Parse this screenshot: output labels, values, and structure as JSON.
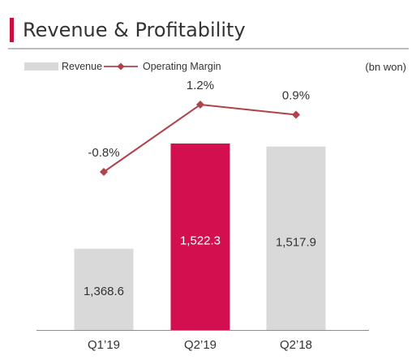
{
  "title": "Revenue & Profitability",
  "unit_label": "(bn won)",
  "colors": {
    "accent": "#c8103e",
    "bar_default": "#d9d9d9",
    "bar_highlight": "#d40f4f",
    "line": "#b0424a",
    "text": "#333333"
  },
  "chart_data": {
    "type": "bar",
    "categories": [
      "Q1’19",
      "Q2’19",
      "Q2’18"
    ],
    "series": [
      {
        "name": "Revenue",
        "type": "bar",
        "values": [
          1368.6,
          1522.3,
          1517.9
        ],
        "labels": [
          "1,368.6",
          "1,522.3",
          "1,517.9"
        ],
        "highlight_index": 1
      },
      {
        "name": "Operating Margin",
        "type": "line",
        "values": [
          -0.8,
          1.2,
          0.9
        ],
        "labels": [
          "-0.8%",
          "1.2%",
          "0.9%"
        ]
      }
    ],
    "legend": {
      "position": "top-left",
      "items": [
        "Revenue",
        "Operating Margin"
      ]
    },
    "grid": false
  }
}
